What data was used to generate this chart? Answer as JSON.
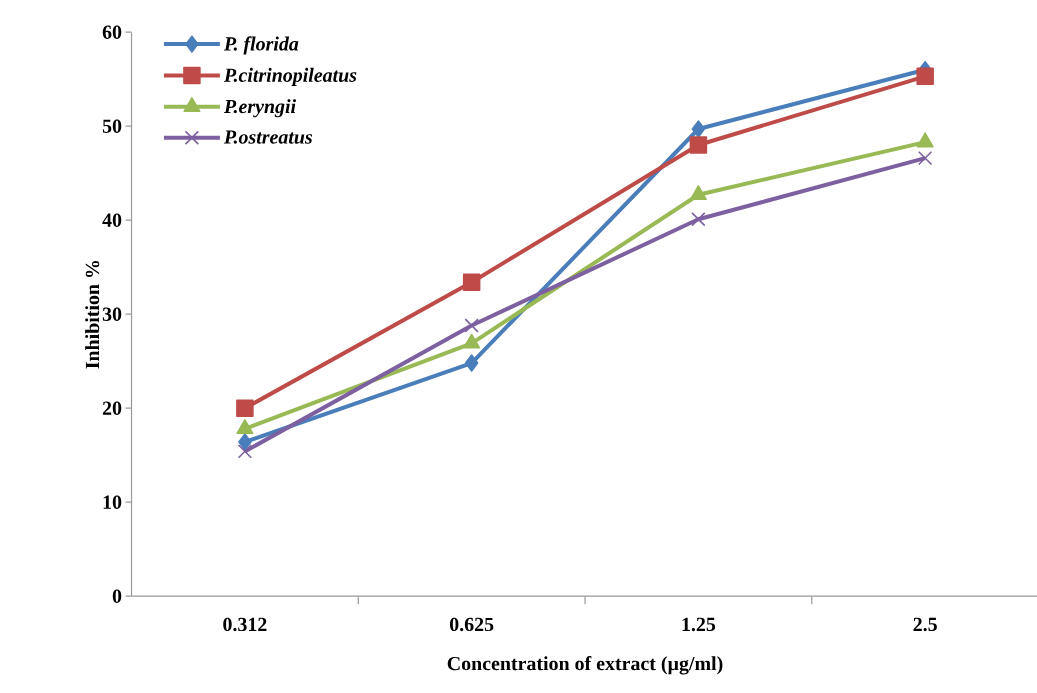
{
  "chart_data": {
    "type": "line",
    "xlabel": "Concentration of extract (µg/ml)",
    "ylabel": "Inhibition %",
    "categories": [
      "0.312",
      "0.625",
      "1.25",
      "2.5"
    ],
    "ylim": [
      0,
      60
    ],
    "yticks": [
      0,
      10,
      20,
      30,
      40,
      50,
      60
    ],
    "grid": false,
    "legend": "top left",
    "line_style": "solid",
    "series": [
      {
        "name": "P. florida",
        "color": "#4a7ebb",
        "marker": "diamond",
        "values": [
          16.4,
          24.8,
          49.7,
          56.0
        ]
      },
      {
        "name": "P.citrinopileatus",
        "color": "#be4b48",
        "marker": "square",
        "values": [
          20.0,
          33.4,
          48.0,
          55.3
        ]
      },
      {
        "name": "P.eryngii",
        "color": "#98b954",
        "marker": "triangle",
        "values": [
          17.8,
          26.9,
          42.7,
          48.3
        ]
      },
      {
        "name": "P.ostreatus",
        "color": "#7d60a0",
        "marker": "cross",
        "values": [
          15.4,
          28.8,
          40.1,
          46.6
        ]
      }
    ]
  }
}
